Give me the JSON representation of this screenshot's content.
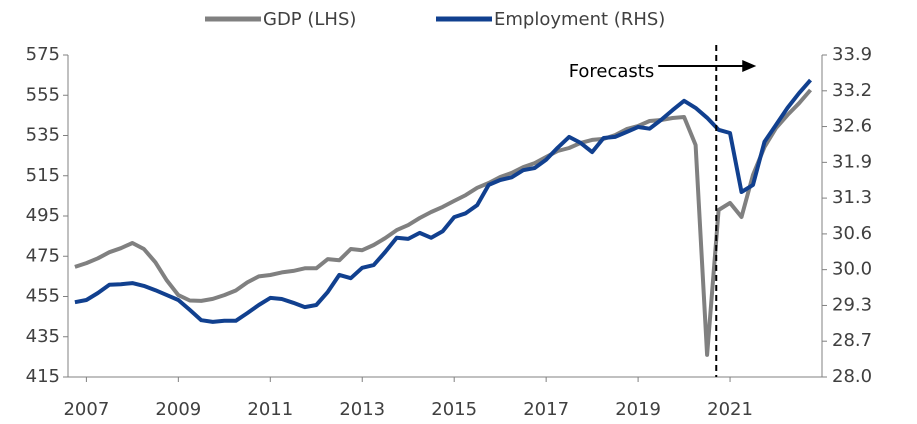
{
  "chart_data": {
    "type": "line",
    "x": [
      2006.75,
      2007,
      2007.25,
      2007.5,
      2007.75,
      2008,
      2008.25,
      2008.5,
      2008.75,
      2009,
      2009.25,
      2009.5,
      2009.75,
      2010,
      2010.25,
      2010.5,
      2010.75,
      2011,
      2011.25,
      2011.5,
      2011.75,
      2012,
      2012.25,
      2012.5,
      2012.75,
      2013,
      2013.25,
      2013.5,
      2013.75,
      2014,
      2014.25,
      2014.5,
      2014.75,
      2015,
      2015.25,
      2015.5,
      2015.75,
      2016,
      2016.25,
      2016.5,
      2016.75,
      2017,
      2017.25,
      2017.5,
      2017.75,
      2018,
      2018.25,
      2018.5,
      2018.75,
      2019,
      2019.25,
      2019.5,
      2019.75,
      2020,
      2020.25,
      2020.5,
      2020.75,
      2021,
      2021.25,
      2021.5,
      2021.75,
      2022,
      2022.25,
      2022.5,
      2022.75
    ],
    "series": [
      {
        "name": "GDP (LHS)",
        "color": "#808080",
        "values": [
          469.7,
          471.6,
          474,
          477,
          479,
          481.6,
          478.6,
          472,
          463,
          455.7,
          453,
          452.8,
          453.8,
          455.7,
          458,
          462,
          465,
          465.7,
          467,
          467.7,
          469,
          469,
          473.6,
          473,
          478.6,
          478,
          480.6,
          484,
          488,
          490.5,
          494,
          497,
          499.5,
          502.5,
          505.4,
          509,
          511.4,
          514.4,
          516.4,
          519.3,
          521.3,
          524.3,
          527.3,
          528.8,
          531.3,
          532.8,
          533.3,
          535.2,
          538.2,
          539.7,
          542.2,
          542.7,
          543.7,
          544.2,
          530.3,
          426,
          498,
          501.5,
          494.5,
          515.4,
          529.3,
          538.7,
          545.2,
          551,
          557.6
        ]
      },
      {
        "name": "Employment (RHS)",
        "color": "#11408f",
        "axis": "y2",
        "values": [
          29.37,
          29.41,
          29.54,
          29.69,
          29.7,
          29.72,
          29.67,
          29.59,
          29.5,
          29.41,
          29.23,
          29.04,
          29.01,
          29.03,
          29.03,
          29.17,
          29.32,
          29.45,
          29.43,
          29.36,
          29.28,
          29.32,
          29.56,
          29.87,
          29.81,
          30,
          30.05,
          30.29,
          30.55,
          30.53,
          30.64,
          30.55,
          30.67,
          30.93,
          31,
          31.15,
          31.52,
          31.61,
          31.66,
          31.79,
          31.83,
          31.98,
          32.2,
          32.4,
          32.29,
          32.12,
          32.38,
          32.4,
          32.49,
          32.58,
          32.55,
          32.71,
          32.89,
          33.06,
          32.93,
          32.75,
          32.53,
          32.47,
          31.39,
          31.52,
          32.31,
          32.62,
          32.93,
          33.2,
          33.44
        ]
      }
    ],
    "xlim": [
      2006.6,
      2023.0
    ],
    "xticks": [
      2007,
      2009,
      2011,
      2013,
      2015,
      2017,
      2019,
      2021
    ],
    "ylim": [
      415,
      575
    ],
    "yticks": [
      415,
      435,
      455,
      475,
      495,
      515,
      535,
      555,
      575
    ],
    "y2lim": [
      28,
      33.9
    ],
    "y2ticks": [
      {
        "value": 28,
        "label": "28.0"
      },
      {
        "value": 28.656,
        "label": "28.7"
      },
      {
        "value": 29.311,
        "label": "29.3"
      },
      {
        "value": 29.967,
        "label": "30.0"
      },
      {
        "value": 30.622,
        "label": "30.6"
      },
      {
        "value": 31.278,
        "label": "31.3"
      },
      {
        "value": 31.933,
        "label": "31.9"
      },
      {
        "value": 32.589,
        "label": "32.6"
      },
      {
        "value": 33.244,
        "label": "33.2"
      },
      33.9
    ],
    "annotations": [
      {
        "text": "Forecasts",
        "x": 2020.7
      }
    ],
    "grid": false,
    "legend": "top"
  }
}
